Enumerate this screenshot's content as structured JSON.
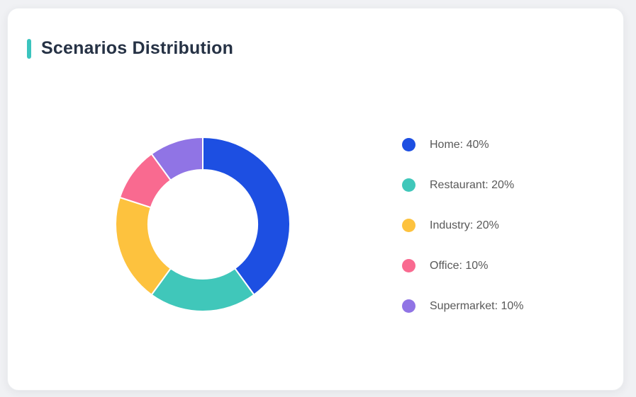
{
  "page": {
    "background_color": "#f0f1f4"
  },
  "card": {
    "title": "Scenarios Distribution",
    "accent_color": "#3bc4be",
    "background_color": "#ffffff"
  },
  "chart_data": {
    "type": "pie",
    "subtype": "donut",
    "title": "Scenarios Distribution",
    "start_angle_deg": 0,
    "direction": "clockwise",
    "inner_radius_ratio": 0.63,
    "categories": [
      "Home",
      "Restaurant",
      "Industry",
      "Office",
      "Supermarket"
    ],
    "values": [
      40,
      20,
      20,
      10,
      10
    ],
    "unit": "%",
    "colors": [
      "#1d4fe2",
      "#40c7ba",
      "#fdc23e",
      "#f96a90",
      "#9074e5"
    ],
    "legend": {
      "position": "right",
      "entries": [
        "Home: 40%",
        "Restaurant: 20%",
        "Industry: 20%",
        "Office: 10%",
        "Supermarket: 10%"
      ]
    }
  }
}
